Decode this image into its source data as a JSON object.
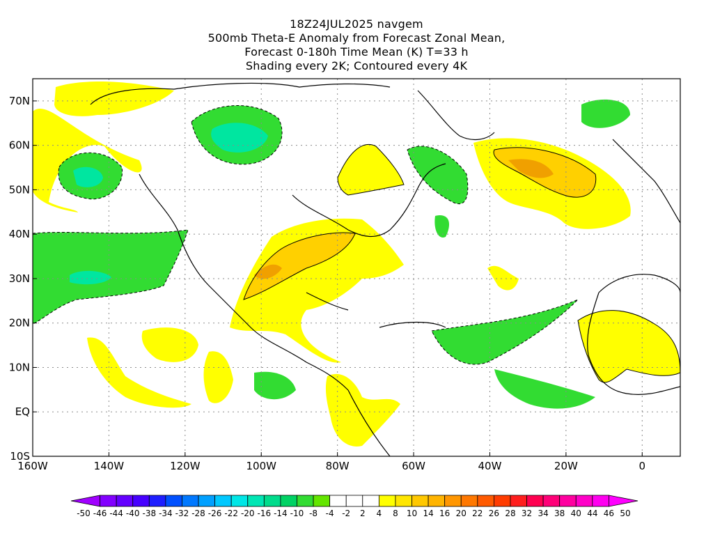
{
  "titles": [
    "18Z24JUL2025 navgem",
    "500mb Theta-E Anomaly from Forecast Zonal Mean,",
    "Forecast 0-180h Time Mean (K) T=33 h",
    "Shading every 2K; Contoured every 4K"
  ],
  "map": {
    "lon_range": [
      -160,
      10
    ],
    "lat_range": [
      -10,
      75
    ],
    "x_ticks": [
      "160W",
      "140W",
      "120W",
      "100W",
      "80W",
      "60W",
      "40W",
      "20W",
      "0"
    ],
    "y_ticks": [
      "10S",
      "EQ",
      "10N",
      "20N",
      "30N",
      "40N",
      "50N",
      "60N",
      "70N"
    ],
    "grid": true
  },
  "colorbar": {
    "labels": [
      "-50",
      "-46",
      "-44",
      "-40",
      "-38",
      "-34",
      "-32",
      "-28",
      "-26",
      "-22",
      "-20",
      "-16",
      "-14",
      "-10",
      "-8",
      "-4",
      "-2",
      "2",
      "4",
      "8",
      "10",
      "14",
      "16",
      "20",
      "22",
      "26",
      "28",
      "32",
      "34",
      "38",
      "40",
      "44",
      "46",
      "50"
    ],
    "colors": [
      "#a000ff",
      "#8200ff",
      "#6400ff",
      "#4600ff",
      "#1e1eff",
      "#0050ff",
      "#0078ff",
      "#00a0ff",
      "#00c8ff",
      "#00e6e6",
      "#00e6b4",
      "#00dc8c",
      "#00d264",
      "#32dc32",
      "#64e600",
      "#ffffff",
      "#ffffff",
      "#ffffff",
      "#ffff00",
      "#ffe600",
      "#ffc800",
      "#ffb400",
      "#ff9600",
      "#ff7800",
      "#ff5a00",
      "#ff3c00",
      "#ff1e1e",
      "#ff0050",
      "#ff0078",
      "#ff00a0",
      "#ff00c8",
      "#ff00f0",
      "#ff00ff"
    ]
  },
  "anomaly_colors": {
    "neg_4": "#32dc32",
    "neg_8": "#00e6a0",
    "pos_4": "#ffff00",
    "pos_8": "#ffd000",
    "pos_12": "#f0a000"
  }
}
